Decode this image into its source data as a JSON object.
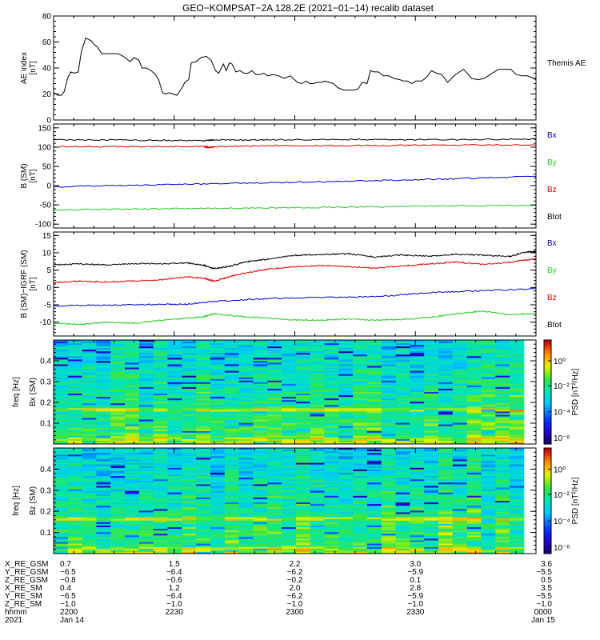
{
  "title": "GEO−KOMPSAT−2A 128.2E (2021−01−14) recalib dataset",
  "time_ticks": [
    "2200",
    "2230",
    "2300",
    "2330",
    "0000"
  ],
  "chart_data": [
    {
      "type": "line",
      "name": "ae",
      "ylabel": "AE index",
      "yunit": "[nT]",
      "ylim": [
        0,
        80
      ],
      "yticks": [
        0,
        20,
        40,
        60,
        80
      ],
      "legend": [
        {
          "label": "Themis AE",
          "color": "#000000"
        }
      ],
      "series": [
        {
          "color": "#000000",
          "x": [
            0.0,
            0.8,
            1.5,
            2.0,
            2.6,
            3.2,
            3.8,
            4.6,
            5.2,
            6.0,
            7.0,
            7.6,
            8.2,
            9.0,
            10.2,
            12.0,
            13.0,
            14.3,
            15.0,
            15.9,
            16.5,
            17.3,
            18.2,
            19.0,
            19.6,
            20.3,
            21.0,
            21.5,
            22.3,
            23.0,
            24.0,
            24.5,
            25.2,
            25.7,
            26.6,
            27.5,
            28.5,
            29.4,
            30.2,
            30.8,
            31.7,
            32.2,
            32.8,
            33.3,
            34.0,
            34.8,
            35.5,
            36.3,
            37.0,
            37.7,
            38.5,
            39.2,
            40.0,
            41.0,
            42.0,
            43.0,
            44.2,
            45.5,
            46.3,
            47.1,
            47.8,
            48.5,
            49.2,
            49.9,
            50.6,
            51.4,
            52.2,
            53.0,
            54.1,
            55.0,
            56.1,
            56.8,
            57.6,
            58.5,
            59.1,
            59.8,
            60.6,
            61.5,
            62.5,
            63.5,
            64.6,
            65.3,
            66.0,
            66.8,
            67.6,
            68.7,
            69.6,
            70.5,
            71.4,
            72.4,
            73.5,
            75.0,
            76.5,
            78.0,
            79.2,
            80.3,
            81.5,
            83.0,
            84.2,
            85.3,
            86.3,
            87.4,
            88.4,
            89.5,
            90.0
          ],
          "y": [
            21,
            19,
            19,
            22,
            32,
            37,
            36,
            37,
            53,
            63,
            61,
            58,
            56,
            51,
            51,
            51,
            49,
            45,
            48,
            46,
            40,
            40,
            38,
            35,
            31,
            21,
            20,
            21,
            20,
            19,
            25,
            29,
            31,
            44,
            45,
            48,
            49,
            46,
            38,
            36,
            43,
            38,
            44,
            43,
            37,
            38,
            36,
            36,
            38,
            35,
            35,
            36,
            34,
            35,
            34,
            32,
            34,
            29,
            28,
            30,
            28,
            28,
            29,
            29,
            30,
            29,
            28,
            25,
            23,
            23,
            23,
            24,
            29,
            28,
            38,
            37,
            37,
            34,
            34,
            32,
            31,
            30,
            30,
            28,
            30,
            30,
            33,
            38,
            36,
            35,
            29,
            35,
            39,
            32,
            31,
            32,
            35,
            39,
            39,
            39,
            35,
            34,
            34,
            32,
            31
          ]
        }
      ]
    },
    {
      "type": "line",
      "name": "b-sm",
      "ylabel": "B (SM)",
      "yunit": "[nT]",
      "ylim": [
        -110,
        160
      ],
      "yticks": [
        -100,
        -50,
        0,
        50,
        100,
        150
      ],
      "legend": [
        {
          "label": "Bx",
          "color": "#0000cc"
        },
        {
          "label": "By",
          "color": "#22cc22"
        },
        {
          "label": "Bz",
          "color": "#dd0000"
        },
        {
          "label": "Btot",
          "color": "#000000"
        }
      ],
      "series": [
        {
          "color": "#000000",
          "x": [
            0,
            15,
            28,
            30,
            35,
            40,
            55,
            70,
            90
          ],
          "y": [
            119,
            118,
            117,
            119,
            118,
            119,
            120,
            119,
            121
          ]
        },
        {
          "color": "#dd0000",
          "x": [
            0,
            15,
            28,
            29,
            30,
            40,
            55,
            70,
            90
          ],
          "y": [
            101,
            101,
            102,
            99,
            101,
            104,
            104,
            105,
            106
          ]
        },
        {
          "color": "#0000cc",
          "x": [
            0,
            15,
            30,
            45,
            60,
            75,
            90
          ],
          "y": [
            -3,
            1,
            5,
            9,
            13,
            18,
            24
          ]
        },
        {
          "color": "#22cc22",
          "x": [
            0,
            15,
            30,
            45,
            60,
            75,
            90
          ],
          "y": [
            -63,
            -61,
            -59,
            -57,
            -55,
            -53,
            -51
          ]
        }
      ]
    },
    {
      "type": "line",
      "name": "b-minus-igrf",
      "ylabel": "B (SM)−IGRF (SM)",
      "yunit": "[nT]",
      "ylim": [
        -14,
        16
      ],
      "yticks": [
        -10,
        -5,
        0,
        5,
        10,
        15
      ],
      "legend": [
        {
          "label": "Bx",
          "color": "#0000cc"
        },
        {
          "label": "By",
          "color": "#22cc22"
        },
        {
          "label": "Bz",
          "color": "#dd0000"
        },
        {
          "label": "Btot",
          "color": "#000000"
        }
      ],
      "series": [
        {
          "color": "#000000",
          "x": [
            0,
            5,
            10,
            15,
            20,
            25,
            28,
            30,
            33,
            36,
            40,
            45,
            50,
            55,
            60,
            65,
            70,
            75,
            80,
            85,
            88,
            90
          ],
          "y": [
            6.5,
            6.8,
            6.5,
            6.9,
            6.8,
            7.1,
            6.4,
            5.4,
            6.2,
            7.4,
            8.2,
            9.3,
            9.5,
            9.7,
            8.8,
            9.4,
            9.0,
            9.6,
            9.3,
            8.9,
            10.2,
            10.4
          ]
        },
        {
          "color": "#dd0000",
          "x": [
            0,
            5,
            10,
            15,
            20,
            25,
            28,
            30,
            33,
            36,
            40,
            45,
            50,
            55,
            60,
            65,
            70,
            75,
            80,
            85,
            88,
            90
          ],
          "y": [
            1.4,
            1.8,
            1.6,
            1.9,
            2.2,
            3.1,
            2.7,
            1.8,
            3.2,
            4.2,
            5.3,
            6.0,
            6.3,
            6.0,
            5.6,
            6.2,
            6.8,
            7.3,
            6.7,
            7.2,
            7.9,
            8.2
          ]
        },
        {
          "color": "#0000cc",
          "x": [
            0,
            10,
            20,
            25,
            30,
            40,
            50,
            60,
            70,
            80,
            90
          ],
          "y": [
            -5.3,
            -5.1,
            -4.9,
            -4.8,
            -4.0,
            -3.2,
            -2.9,
            -2.7,
            -1.5,
            -0.9,
            -0.4
          ]
        },
        {
          "color": "#22cc22",
          "x": [
            0,
            5,
            10,
            15,
            20,
            25,
            28,
            30,
            35,
            40,
            45,
            50,
            55,
            60,
            65,
            70,
            75,
            80,
            85,
            90
          ],
          "y": [
            -10.3,
            -10.7,
            -10.0,
            -10.3,
            -9.5,
            -8.9,
            -8.4,
            -7.6,
            -8.4,
            -8.9,
            -9.4,
            -9.4,
            -9.1,
            -9.4,
            -9.2,
            -8.7,
            -7.6,
            -6.8,
            -7.8,
            -7.6
          ]
        }
      ]
    },
    {
      "type": "heatmap",
      "name": "bx-spectrogram",
      "ylabel": "Bx (SM)",
      "ysub": "freq [Hz]",
      "ylim": [
        0,
        0.5
      ],
      "yticks": [
        0.1,
        0.2,
        0.3,
        0.4
      ],
      "colorbar_label": "PSD [nT²/Hz]",
      "colorbar_ticks": [
        "10⁰",
        "10⁻²",
        "10⁻⁴",
        "10⁻⁶"
      ],
      "seed": 11
    },
    {
      "type": "heatmap",
      "name": "bz-spectrogram",
      "ylabel": "Bz (SM)",
      "ysub": "freq [Hz]",
      "ylim": [
        0,
        0.5
      ],
      "yticks": [
        0.1,
        0.2,
        0.3,
        0.4
      ],
      "colorbar_label": "PSD [nT²/Hz]",
      "colorbar_ticks": [
        "10⁰",
        "10⁻²",
        "10⁻⁴",
        "10⁻⁶"
      ],
      "seed": 37
    }
  ],
  "ephemeris": {
    "rows": [
      {
        "label": "X_RE_GSM",
        "values": [
          "0.7",
          "1.5",
          "2.2",
          "3.0",
          "3.6"
        ]
      },
      {
        "label": "Y_RE_GSM",
        "values": [
          "−6.5",
          "−6.4",
          "−6.2",
          "−5.9",
          "−5.5"
        ]
      },
      {
        "label": "Z_RE_GSM",
        "values": [
          "−0.8",
          "−0.6",
          "−0.2",
          "0.1",
          "0.5"
        ]
      },
      {
        "label": "X_RE_SM",
        "values": [
          "0.4",
          "1.2",
          "2.0",
          "2.8",
          "3.5"
        ]
      },
      {
        "label": "Y_RE_SM",
        "values": [
          "−6.5",
          "−6.4",
          "−6.2",
          "−5.9",
          "−5.5"
        ]
      },
      {
        "label": "Z_RE_SM",
        "values": [
          "−1.0",
          "−1.0",
          "−1.0",
          "−1.0",
          "−1.0"
        ]
      },
      {
        "label": "hhmm",
        "values": [
          "2200",
          "2230",
          "2300",
          "2330",
          "0000"
        ]
      }
    ],
    "year": "2021",
    "start_date": "Jan 14",
    "end_date": "Jan 15"
  }
}
